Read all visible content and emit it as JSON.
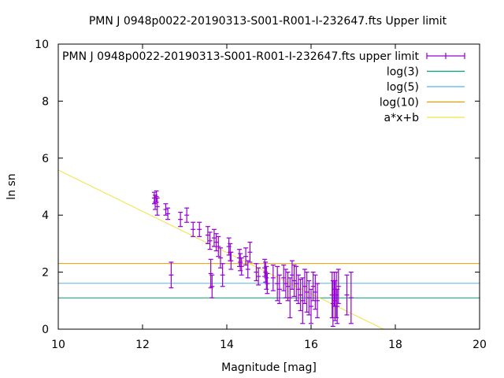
{
  "chart_data": {
    "type": "scatter",
    "title": "PMN J 0948p0022-20190313-S001-R001-I-232647.fts Upper limit",
    "xlabel": "Magnitude [mag]",
    "ylabel": "ln sn",
    "xlim": [
      10,
      20
    ],
    "ylim": [
      0,
      10
    ],
    "x_ticks": [
      10,
      12,
      14,
      16,
      18,
      20
    ],
    "y_ticks": [
      0,
      2,
      4,
      6,
      8,
      10
    ],
    "grid": false,
    "legend_position": "top-right",
    "series": [
      {
        "name": "PMN J 0948p0022-20190313-S001-R001-I-232647.fts upper limit",
        "kind": "errorbar",
        "color": "#9400d3",
        "points": [
          [
            12.28,
            4.6,
            0.2
          ],
          [
            12.3,
            4.45,
            0.25
          ],
          [
            12.33,
            4.65,
            0.2
          ],
          [
            12.35,
            4.3,
            0.3
          ],
          [
            12.55,
            4.2,
            0.2
          ],
          [
            12.6,
            4.05,
            0.2
          ],
          [
            12.68,
            1.9,
            0.45
          ],
          [
            12.9,
            3.85,
            0.25
          ],
          [
            13.05,
            4.0,
            0.25
          ],
          [
            13.2,
            3.5,
            0.25
          ],
          [
            13.35,
            3.5,
            0.25
          ],
          [
            13.55,
            3.3,
            0.3
          ],
          [
            13.6,
            3.1,
            0.3
          ],
          [
            13.62,
            1.95,
            0.5
          ],
          [
            13.65,
            1.5,
            0.4
          ],
          [
            13.7,
            3.2,
            0.3
          ],
          [
            13.75,
            3.05,
            0.3
          ],
          [
            13.8,
            2.9,
            0.35
          ],
          [
            13.85,
            2.5,
            0.35
          ],
          [
            13.9,
            1.9,
            0.4
          ],
          [
            14.05,
            2.9,
            0.3
          ],
          [
            14.08,
            2.7,
            0.3
          ],
          [
            14.1,
            2.4,
            0.3
          ],
          [
            14.3,
            2.5,
            0.3
          ],
          [
            14.32,
            2.35,
            0.3
          ],
          [
            14.35,
            2.2,
            0.3
          ],
          [
            14.45,
            2.55,
            0.3
          ],
          [
            14.5,
            2.1,
            0.3
          ],
          [
            14.55,
            2.7,
            0.35
          ],
          [
            14.7,
            2.0,
            0.3
          ],
          [
            14.75,
            1.85,
            0.3
          ],
          [
            14.9,
            2.15,
            0.3
          ],
          [
            14.92,
            2.0,
            0.35
          ],
          [
            14.94,
            1.8,
            0.4
          ],
          [
            14.96,
            1.6,
            0.35
          ],
          [
            15.1,
            1.8,
            0.45
          ],
          [
            15.2,
            1.6,
            0.6
          ],
          [
            15.25,
            1.4,
            0.5
          ],
          [
            15.35,
            1.8,
            0.45
          ],
          [
            15.4,
            1.6,
            0.5
          ],
          [
            15.45,
            1.5,
            0.5
          ],
          [
            15.5,
            1.1,
            0.7
          ],
          [
            15.55,
            1.9,
            0.5
          ],
          [
            15.6,
            1.7,
            0.55
          ],
          [
            15.65,
            1.6,
            0.6
          ],
          [
            15.7,
            1.4,
            0.5
          ],
          [
            15.75,
            1.2,
            0.55
          ],
          [
            15.8,
            1.0,
            0.8
          ],
          [
            15.85,
            1.5,
            0.6
          ],
          [
            15.9,
            1.3,
            0.7
          ],
          [
            15.95,
            1.1,
            0.6
          ],
          [
            16.0,
            0.8,
            0.6
          ],
          [
            16.05,
            1.5,
            0.5
          ],
          [
            16.1,
            1.3,
            0.6
          ],
          [
            16.15,
            1.0,
            0.6
          ],
          [
            16.5,
            1.2,
            0.8
          ],
          [
            16.52,
            0.9,
            0.8
          ],
          [
            16.55,
            1.4,
            0.6
          ],
          [
            16.57,
            1.0,
            0.7
          ],
          [
            16.6,
            1.2,
            0.8
          ],
          [
            16.62,
            0.8,
            0.6
          ],
          [
            16.65,
            1.5,
            0.6
          ],
          [
            16.85,
            1.2,
            0.7
          ],
          [
            16.95,
            1.1,
            0.9
          ]
        ]
      },
      {
        "name": "log(3)",
        "kind": "hline",
        "color": "#009e73",
        "y": 1.0986
      },
      {
        "name": "log(5)",
        "kind": "hline",
        "color": "#56b4e9",
        "y": 1.6094
      },
      {
        "name": "log(10)",
        "kind": "hline",
        "color": "#e69f00",
        "y": 2.3026
      },
      {
        "name": "a*x+b",
        "kind": "line",
        "color": "#f0e442",
        "x": [
          10,
          17.72
        ],
        "y": [
          5.58,
          0.0
        ]
      }
    ]
  }
}
